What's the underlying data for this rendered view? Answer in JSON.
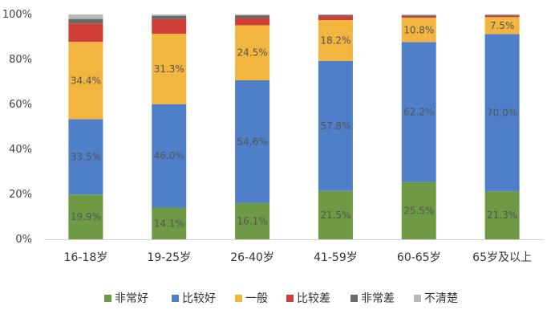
{
  "chart_data": {
    "type": "bar",
    "stacked": true,
    "categories": [
      "16-18岁",
      "19-25岁",
      "26-40岁",
      "41-59岁",
      "60-65岁",
      "65岁及以上"
    ],
    "series": [
      {
        "name": "非常好",
        "color": "#6e9a45",
        "values": [
          19.9,
          14.1,
          16.1,
          21.5,
          25.5,
          21.3
        ],
        "data_labels": [
          "19.9%",
          "14.1%",
          "16.1%",
          "21.5%",
          "25.5%",
          "21.3%"
        ]
      },
      {
        "name": "比较好",
        "color": "#4f7fc8",
        "values": [
          33.5,
          46.0,
          54.6,
          57.8,
          62.2,
          70.0
        ],
        "data_labels": [
          "33.5%",
          "46.0%",
          "54.6%",
          "57.8%",
          "62.2%",
          "70.0%"
        ]
      },
      {
        "name": "一般",
        "color": "#f2b540",
        "values": [
          34.4,
          31.3,
          24.5,
          18.2,
          10.8,
          7.5
        ],
        "data_labels": [
          "34.4%",
          "31.3%",
          "24.5%",
          "18.2%",
          "10.8%",
          "7.5%"
        ]
      },
      {
        "name": "比较差",
        "color": "#cf3f37",
        "values": [
          8.2,
          6.5,
          3.2,
          1.8,
          0.6,
          0.7
        ],
        "data_labels": []
      },
      {
        "name": "非常差",
        "color": "#6a6a6a",
        "values": [
          2.0,
          1.5,
          1.2,
          0.5,
          0.5,
          0.3
        ],
        "data_labels": []
      },
      {
        "name": "不清楚",
        "color": "#b8b8b8",
        "values": [
          2.0,
          0.6,
          0.4,
          0.2,
          0.4,
          0.2
        ],
        "data_labels": []
      }
    ],
    "y_ticks": [
      "0%",
      "20%",
      "40%",
      "60%",
      "80%",
      "100%"
    ],
    "ylim": [
      0,
      100
    ],
    "grid": false,
    "legend_position": "bottom"
  }
}
